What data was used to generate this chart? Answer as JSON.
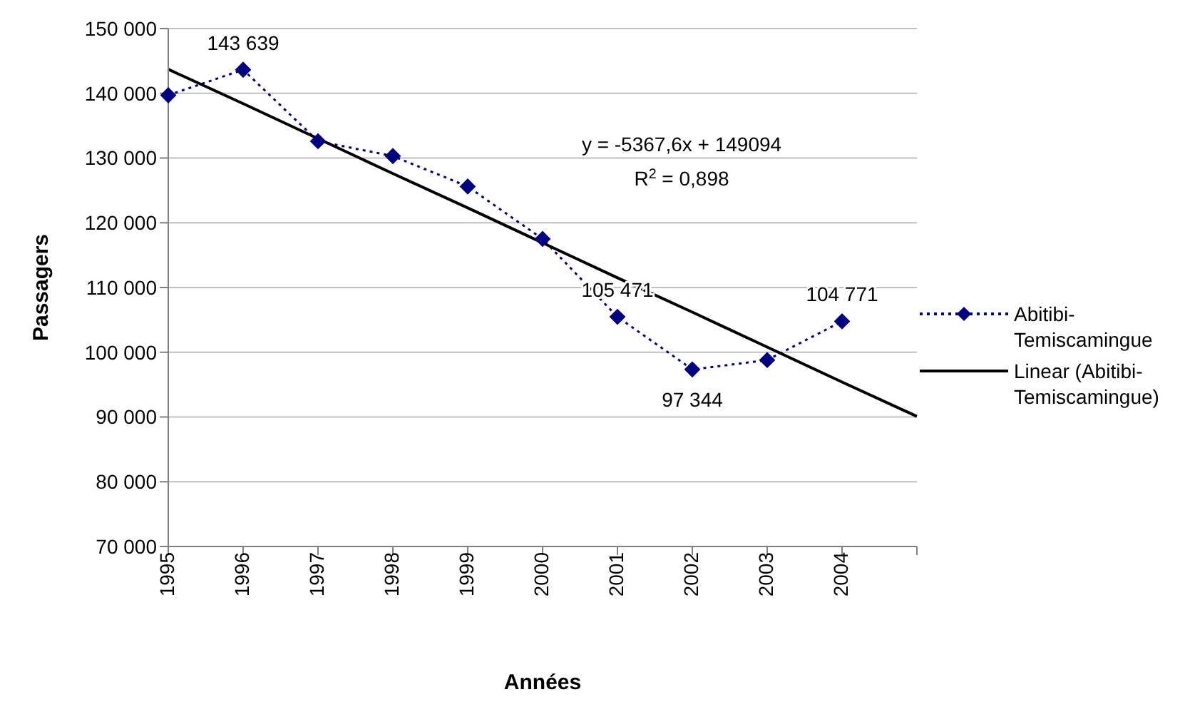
{
  "chart_data": {
    "type": "line",
    "xlabel": "Années",
    "ylabel": "Passagers",
    "categories": [
      "1995",
      "1996",
      "1997",
      "1998",
      "1999",
      "2000",
      "2001",
      "2002",
      "2003",
      "2004",
      null
    ],
    "series": [
      {
        "name": "Abitibi-Temiscamingue",
        "color": "#000080",
        "marker": "diamond",
        "line_style": "dotted",
        "values": [
          139700,
          143639,
          132600,
          130300,
          125600,
          117500,
          105471,
          97344,
          98800,
          104771,
          null
        ],
        "value_labels": [
          null,
          "143 639",
          null,
          null,
          null,
          null,
          "105 471",
          "97 344",
          null,
          "104 771",
          null
        ]
      },
      {
        "name": "Linear (Abitibi-Temiscamingue)",
        "color": "#000000",
        "marker": "none",
        "line_style": "solid",
        "values": [
          143700,
          138400,
          133000,
          127600,
          122300,
          116900,
          111500,
          106200,
          100800,
          95400,
          90100
        ]
      }
    ],
    "ylim": [
      70000,
      150000
    ],
    "yticks": [
      {
        "value": 70000,
        "label": "70 000"
      },
      {
        "value": 80000,
        "label": "80 000"
      },
      {
        "value": 90000,
        "label": "90 000"
      },
      {
        "value": 100000,
        "label": "100 000"
      },
      {
        "value": 110000,
        "label": "110 000"
      },
      {
        "value": 120000,
        "label": "120 000"
      },
      {
        "value": 130000,
        "label": "130 000"
      },
      {
        "value": 140000,
        "label": "140 000"
      },
      {
        "value": 150000,
        "label": "150 000"
      }
    ],
    "grid": "y",
    "legend": "right",
    "annotations": [
      "y = -5367,6x + 149094",
      "R$^{2}$ = 0,898"
    ]
  }
}
